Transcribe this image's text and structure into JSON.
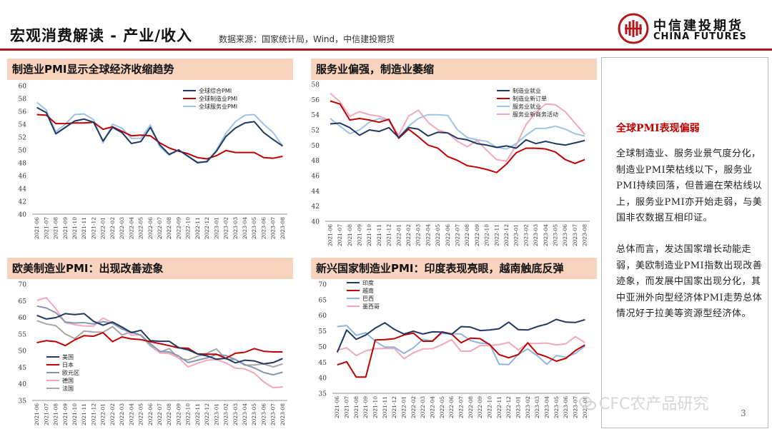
{
  "header": {
    "title": "宏观消费解读 - 产业/收入",
    "source": "数据来源：国家统计局，Wind，中信建投期货"
  },
  "logo": {
    "cn": "中信建投期货",
    "en": "CHINA FUTURES"
  },
  "colors": {
    "accent": "#b3161b",
    "title_band": "#f8d4bf",
    "side_heading": "#c00000"
  },
  "sidebar": {
    "heading": "全球PMI表现偏弱",
    "para1": "全球制造业、服务业景气度分化，制造业PMI荣枯线以下，服务业PMI持续回落，但普遍在荣枯线以上，服务业PMI亦开始走弱，与美国非农数据互相印证。",
    "para2": "总体而言，发达国家增长动能走弱，美欧制造业PMI指数出现改善迹象，而发展中国家出现分化，其中亚洲外向型经济体PMI走势总体情况好于拉美等资源型经济体。"
  },
  "watermark": "CFC农产品研究",
  "page_number": "3",
  "chart_data": [
    {
      "type": "line",
      "title": "制造业PMI显示全球经济收缩趋势",
      "x": [
        "2021-06",
        "2021-07",
        "2021-08",
        "2021-09",
        "2021-10",
        "2021-11",
        "2021-12",
        "2022-01",
        "2022-02",
        "2022-03",
        "2022-04",
        "2022-05",
        "2022-06",
        "2022-07",
        "2022-08",
        "2022-09",
        "2022-10",
        "2022-11",
        "2022-12",
        "2023-01",
        "2023-02",
        "2023-03",
        "2023-04",
        "2023-05",
        "2023-06",
        "2023-07",
        "2023-08"
      ],
      "ylim": [
        40,
        60
      ],
      "yticks": [
        40,
        42,
        44,
        46,
        48,
        50,
        52,
        54,
        56,
        58,
        60
      ],
      "legend_position": "top-right",
      "series": [
        {
          "name": "全球综合PMI",
          "color": "#1f3864",
          "values": [
            56.6,
            55.8,
            52.5,
            53.5,
            54.5,
            54.8,
            54.3,
            51.4,
            53.5,
            52.7,
            51.0,
            51.3,
            53.5,
            50.8,
            49.3,
            50.0,
            49.0,
            48.0,
            48.2,
            49.8,
            52.1,
            53.4,
            54.2,
            54.4,
            52.7,
            51.6,
            50.6
          ]
        },
        {
          "name": "全球制造业PMI",
          "color": "#c00000",
          "values": [
            55.5,
            55.4,
            54.1,
            54.1,
            54.2,
            54.2,
            54.3,
            53.2,
            53.6,
            52.9,
            52.2,
            52.3,
            52.2,
            51.1,
            50.3,
            49.8,
            49.4,
            48.8,
            48.6,
            49.1,
            49.9,
            49.6,
            49.6,
            49.6,
            48.8,
            48.7,
            49.0
          ]
        },
        {
          "name": "全球服务业PMI",
          "color": "#9dc3e6",
          "values": [
            57.4,
            56.2,
            52.8,
            54.0,
            55.5,
            55.6,
            54.7,
            51.1,
            54.0,
            53.4,
            51.8,
            51.8,
            53.9,
            50.5,
            49.2,
            50.0,
            49.0,
            48.1,
            48.1,
            50.0,
            52.6,
            54.4,
            55.4,
            55.5,
            54.0,
            52.7,
            50.6
          ]
        }
      ]
    },
    {
      "type": "line",
      "title": "服务业偏强，制造业萎缩",
      "x": [
        "2021-06",
        "2021-07",
        "2021-08",
        "2021-09",
        "2021-10",
        "2021-11",
        "2021-12",
        "2022-01",
        "2022-02",
        "2022-03",
        "2022-04",
        "2022-05",
        "2022-06",
        "2022-07",
        "2022-08",
        "2022-09",
        "2022-10",
        "2022-11",
        "2022-12",
        "2023-01",
        "2023-02",
        "2023-03",
        "2023-04",
        "2023-05",
        "2023-06",
        "2023-07",
        "2023-08"
      ],
      "ylim": [
        40,
        58
      ],
      "yticks": [
        40,
        42,
        44,
        46,
        48,
        50,
        52,
        54,
        56,
        58
      ],
      "legend_position": "top-right",
      "series": [
        {
          "name": "制造业就业",
          "color": "#1f3864",
          "values": [
            52.8,
            52.9,
            52.3,
            51.3,
            52.0,
            51.8,
            52.3,
            51.0,
            52.3,
            52.1,
            51.2,
            51.7,
            51.6,
            50.9,
            50.7,
            50.2,
            50.0,
            49.7,
            49.9,
            49.6,
            50.7,
            50.2,
            50.5,
            50.2,
            50.0,
            50.3,
            50.6
          ]
        },
        {
          "name": "制造业新订单",
          "color": "#c00000",
          "values": [
            55.8,
            55.4,
            53.3,
            53.5,
            53.3,
            53.0,
            53.4,
            50.9,
            52.1,
            51.1,
            50.0,
            49.6,
            48.5,
            48.0,
            47.3,
            47.1,
            46.8,
            46.4,
            47.5,
            49.0,
            49.6,
            49.6,
            49.5,
            49.1,
            48.1,
            47.6,
            48.1
          ]
        },
        {
          "name": "服务业就业",
          "color": "#9dc3e6",
          "values": [
            53.5,
            52.5,
            51.5,
            52.0,
            53.0,
            53.5,
            53.2,
            51.0,
            52.5,
            53.5,
            54.0,
            54.0,
            53.9,
            52.0,
            51.0,
            50.7,
            50.5,
            49.7,
            49.5,
            50.2,
            51.3,
            52.2,
            52.2,
            52.5,
            52.1,
            51.5,
            51.2
          ]
        },
        {
          "name": "服务业新商务活动",
          "color": "#f4a7b9",
          "values": [
            56.8,
            55.7,
            53.8,
            54.4,
            54.0,
            53.8,
            53.3,
            51.3,
            53.8,
            54.6,
            53.0,
            52.0,
            51.6,
            50.5,
            49.8,
            50.6,
            49.3,
            48.1,
            47.9,
            50.0,
            52.7,
            54.3,
            55.4,
            55.3,
            54.4,
            52.9,
            51.4
          ]
        }
      ]
    },
    {
      "type": "line",
      "title": "欧美制造业PMI：出现改善迹象",
      "x": [
        "2021-06",
        "2021-07",
        "2021-08",
        "2021-09",
        "2021-10",
        "2021-11",
        "2021-12",
        "2022-01",
        "2022-02",
        "2022-03",
        "2022-04",
        "2022-05",
        "2022-06",
        "2022-07",
        "2022-08",
        "2022-09",
        "2022-10",
        "2022-11",
        "2022-12",
        "2023-01",
        "2023-02",
        "2023-03",
        "2023-04",
        "2023-05",
        "2023-06",
        "2023-07",
        "2023-08"
      ],
      "ylim": [
        35,
        70
      ],
      "yticks": [
        35,
        40,
        45,
        50,
        55,
        60,
        65,
        70
      ],
      "legend_position": "bottom-left",
      "series": [
        {
          "name": "美国",
          "color": "#1f3864",
          "values": [
            60.6,
            59.5,
            59.9,
            61.1,
            60.8,
            61.1,
            58.8,
            57.6,
            58.6,
            57.1,
            55.4,
            56.1,
            53.0,
            52.8,
            52.8,
            50.9,
            50.2,
            49.0,
            48.4,
            47.4,
            47.7,
            46.3,
            47.1,
            46.9,
            46.0,
            46.4,
            47.6
          ]
        },
        {
          "name": "日本",
          "color": "#c00000",
          "values": [
            52.4,
            53.0,
            52.7,
            51.5,
            53.2,
            54.5,
            54.3,
            55.4,
            52.7,
            54.1,
            53.5,
            53.3,
            52.7,
            52.1,
            51.5,
            50.8,
            50.7,
            49.0,
            48.9,
            48.9,
            47.7,
            49.2,
            49.5,
            50.6,
            49.8,
            49.6,
            49.6
          ]
        },
        {
          "name": "欧元区",
          "color": "#8497b0",
          "values": [
            63.4,
            62.8,
            61.4,
            58.6,
            58.3,
            58.4,
            58.0,
            58.7,
            58.2,
            56.5,
            55.5,
            54.6,
            52.1,
            49.8,
            49.6,
            48.4,
            46.4,
            47.1,
            47.8,
            48.8,
            48.5,
            47.3,
            45.8,
            44.8,
            43.4,
            42.7,
            43.5
          ]
        },
        {
          "name": "德国",
          "color": "#f4a7b9",
          "values": [
            65.1,
            65.9,
            62.6,
            58.4,
            57.8,
            57.4,
            57.4,
            59.8,
            58.4,
            56.9,
            54.6,
            54.8,
            52.0,
            49.3,
            49.1,
            47.8,
            45.1,
            46.2,
            47.1,
            47.3,
            46.3,
            44.7,
            44.5,
            43.2,
            40.6,
            38.8,
            39.1
          ]
        },
        {
          "name": "法国",
          "color": "#a6a6a6",
          "values": [
            59.0,
            58.0,
            57.5,
            55.0,
            53.6,
            55.9,
            55.6,
            55.5,
            57.2,
            54.7,
            55.7,
            54.6,
            51.4,
            49.5,
            50.6,
            47.7,
            47.2,
            48.3,
            49.2,
            50.5,
            47.4,
            47.3,
            45.6,
            45.7,
            46.0,
            45.1,
            46.0
          ]
        }
      ]
    },
    {
      "type": "line",
      "title": "新兴国家制造业PMI：印度表现亮眼，越南触底反弹",
      "x": [
        "2021-06",
        "2021-07",
        "2021-08",
        "2021-09",
        "2021-10",
        "2021-11",
        "2021-12",
        "2022-01",
        "2022-02",
        "2022-03",
        "2022-04",
        "2022-05",
        "2022-06",
        "2022-07",
        "2022-08",
        "2022-09",
        "2022-10",
        "2022-11",
        "2022-12",
        "2023-01",
        "2023-02",
        "2023-03",
        "2023-04",
        "2023-05",
        "2023-06",
        "2023-07",
        "2023-08"
      ],
      "ylim": [
        35,
        70
      ],
      "yticks": [
        35,
        40,
        45,
        50,
        55,
        60,
        65,
        70
      ],
      "legend_position": "top-left",
      "series": [
        {
          "name": "印度",
          "color": "#1f3864",
          "values": [
            48.1,
            55.3,
            52.3,
            53.7,
            55.9,
            57.6,
            55.5,
            54.0,
            54.9,
            54.0,
            54.7,
            54.6,
            53.9,
            56.4,
            56.2,
            55.1,
            55.3,
            55.7,
            57.8,
            55.4,
            55.3,
            56.4,
            57.2,
            58.7,
            57.8,
            57.7,
            58.6
          ]
        },
        {
          "name": "越南",
          "color": "#c00000",
          "values": [
            44.1,
            45.1,
            40.2,
            40.2,
            52.1,
            52.2,
            52.5,
            53.7,
            54.3,
            51.7,
            51.7,
            54.7,
            54.0,
            51.2,
            52.7,
            52.5,
            50.6,
            47.4,
            46.4,
            47.4,
            51.2,
            47.7,
            46.7,
            45.3,
            46.2,
            48.7,
            50.5
          ]
        },
        {
          "name": "巴西",
          "color": "#8eb4e3",
          "values": [
            56.4,
            56.7,
            53.6,
            54.4,
            51.7,
            49.8,
            49.8,
            47.8,
            49.6,
            52.3,
            51.8,
            54.2,
            54.1,
            54.0,
            51.9,
            51.1,
            50.8,
            44.3,
            44.2,
            47.5,
            49.2,
            47.0,
            44.3,
            47.1,
            46.6,
            47.8,
            50.1
          ]
        },
        {
          "name": "墨西哥",
          "color": "#f4a7b9",
          "values": [
            48.8,
            49.6,
            47.1,
            48.6,
            49.3,
            49.4,
            49.4,
            46.1,
            48.0,
            49.2,
            49.3,
            50.6,
            52.2,
            48.5,
            48.5,
            50.3,
            50.3,
            50.6,
            51.3,
            48.9,
            51.0,
            51.0,
            51.1,
            50.5,
            50.9,
            53.2,
            51.2
          ]
        }
      ]
    }
  ]
}
